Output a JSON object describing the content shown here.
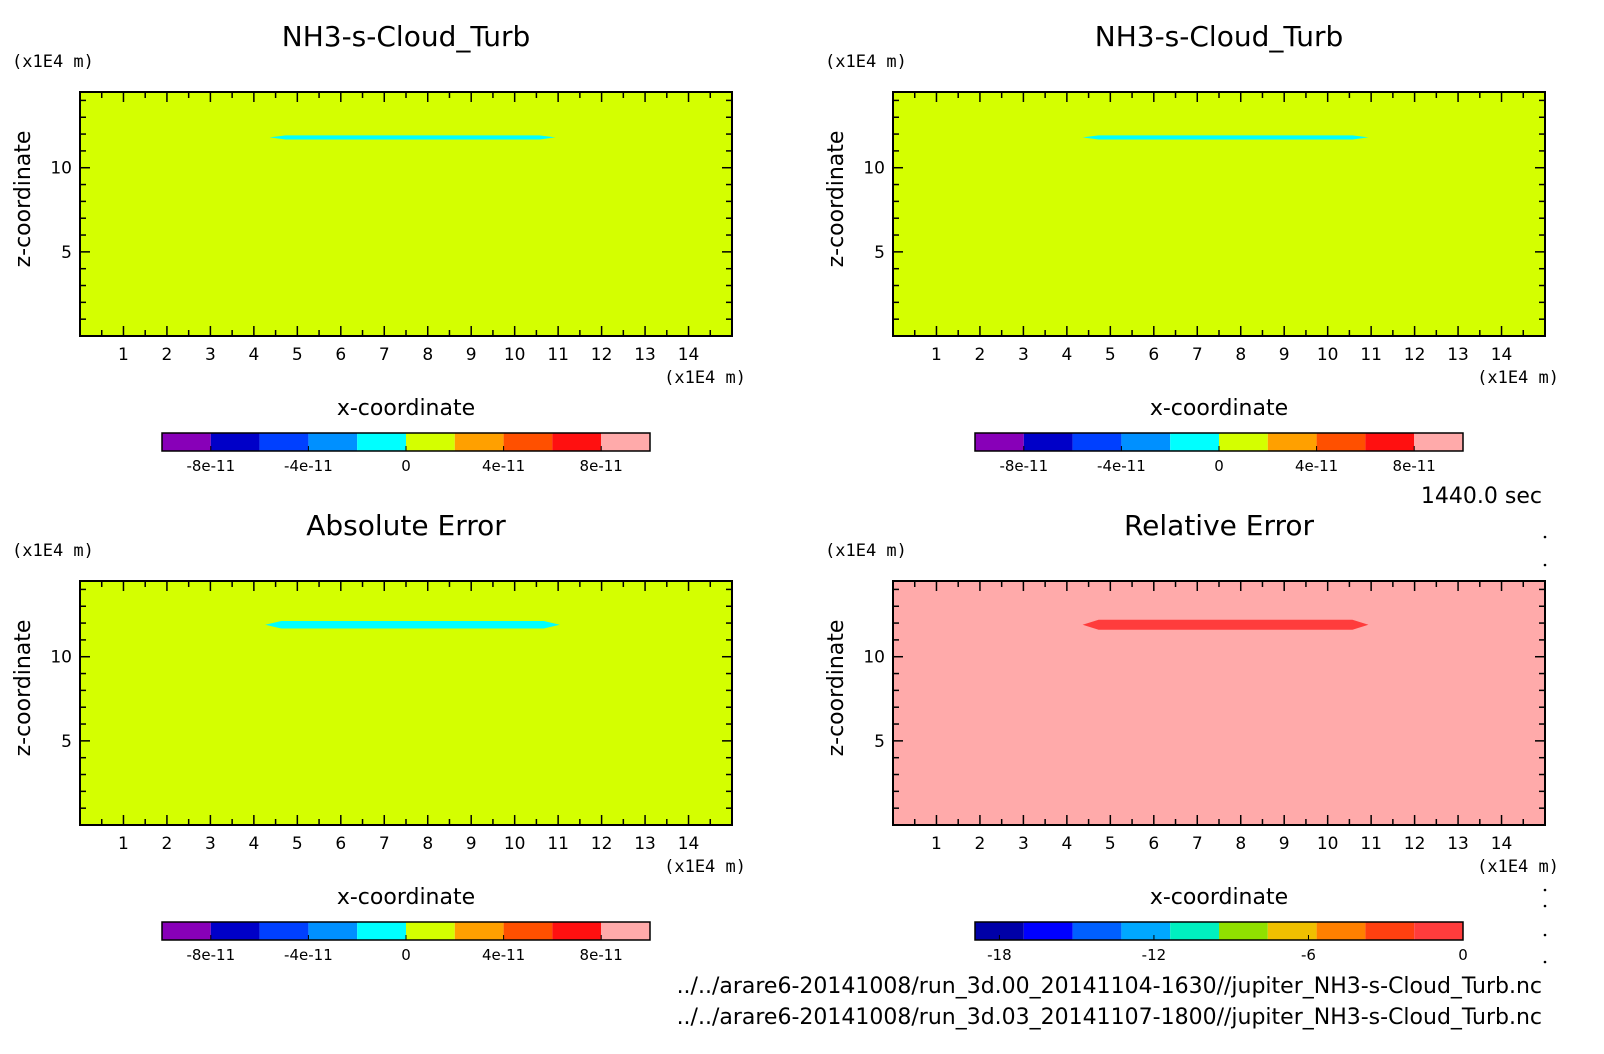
{
  "time_label": "1440.0 sec",
  "footer": {
    "line1": "../../arare6-20141008/run_3d.00_20141104-1630//jupiter_NH3-s-Cloud_Turb.nc",
    "line2": "../../arare6-20141008/run_3d.03_20141107-1800//jupiter_NH3-s-Cloud_Turb.nc"
  },
  "chart_data": [
    {
      "type": "heatmap",
      "title": "NH3-s-Cloud_Turb",
      "xlabel": "x-coordinate",
      "ylabel": "z-coordinate",
      "xunit": "(x1E4 m)",
      "yunit": "(x1E4 m)",
      "xlim": [
        0,
        15
      ],
      "ylim": [
        0,
        14.5
      ],
      "xticks": [
        "1",
        "2",
        "3",
        "4",
        "5",
        "6",
        "7",
        "8",
        "9",
        "10",
        "11",
        "12",
        "13",
        "14"
      ],
      "yticks": [
        "5",
        "10"
      ],
      "background_color": "#d4ff00",
      "band": {
        "x_start": 4.5,
        "x_end": 10.8,
        "z": 11.8,
        "thickness": 0.25,
        "color": "#00ffff"
      },
      "colorbar": {
        "colors": [
          "#8800b8",
          "#0000c8",
          "#0040ff",
          "#0090ff",
          "#00ffff",
          "#d4ff00",
          "#ffa000",
          "#ff5000",
          "#ff1010",
          "#ffaaaa"
        ],
        "tick_labels": [
          "-8e-11",
          "-4e-11",
          "0",
          "4e-11",
          "8e-11"
        ]
      }
    },
    {
      "type": "heatmap",
      "title": "NH3-s-Cloud_Turb",
      "xlabel": "x-coordinate",
      "ylabel": "z-coordinate",
      "xunit": "(x1E4 m)",
      "yunit": "(x1E4 m)",
      "xlim": [
        0,
        15
      ],
      "ylim": [
        0,
        14.5
      ],
      "xticks": [
        "1",
        "2",
        "3",
        "4",
        "5",
        "6",
        "7",
        "8",
        "9",
        "10",
        "11",
        "12",
        "13",
        "14"
      ],
      "yticks": [
        "5",
        "10"
      ],
      "background_color": "#d4ff00",
      "band": {
        "x_start": 4.5,
        "x_end": 10.8,
        "z": 11.8,
        "thickness": 0.25,
        "color": "#00ffff"
      },
      "colorbar": {
        "colors": [
          "#8800b8",
          "#0000c8",
          "#0040ff",
          "#0090ff",
          "#00ffff",
          "#d4ff00",
          "#ffa000",
          "#ff5000",
          "#ff1010",
          "#ffaaaa"
        ],
        "tick_labels": [
          "-8e-11",
          "-4e-11",
          "0",
          "4e-11",
          "8e-11"
        ]
      }
    },
    {
      "type": "heatmap",
      "title": "Absolute Error",
      "xlabel": "x-coordinate",
      "ylabel": "z-coordinate",
      "xunit": "(x1E4 m)",
      "yunit": "(x1E4 m)",
      "xlim": [
        0,
        15
      ],
      "ylim": [
        0,
        14.5
      ],
      "xticks": [
        "1",
        "2",
        "3",
        "4",
        "5",
        "6",
        "7",
        "8",
        "9",
        "10",
        "11",
        "12",
        "13",
        "14"
      ],
      "yticks": [
        "5",
        "10"
      ],
      "background_color": "#d4ff00",
      "band": {
        "x_start": 4.4,
        "x_end": 10.9,
        "z": 11.9,
        "thickness": 0.45,
        "color": "#00ffff"
      },
      "colorbar": {
        "colors": [
          "#8800b8",
          "#0000c8",
          "#0040ff",
          "#0090ff",
          "#00ffff",
          "#d4ff00",
          "#ffa000",
          "#ff5000",
          "#ff1010",
          "#ffaaaa"
        ],
        "tick_labels": [
          "-8e-11",
          "-4e-11",
          "0",
          "4e-11",
          "8e-11"
        ]
      }
    },
    {
      "type": "heatmap",
      "title": "Relative Error",
      "xlabel": "x-coordinate",
      "ylabel": "z-coordinate",
      "xunit": "(x1E4 m)",
      "yunit": "(x1E4 m)",
      "xlim": [
        0,
        15
      ],
      "ylim": [
        0,
        14.5
      ],
      "xticks": [
        "1",
        "2",
        "3",
        "4",
        "5",
        "6",
        "7",
        "8",
        "9",
        "10",
        "11",
        "12",
        "13",
        "14"
      ],
      "yticks": [
        "5",
        "10"
      ],
      "background_color": "#ffaaaa",
      "band": {
        "x_start": 4.5,
        "x_end": 10.8,
        "z": 11.9,
        "thickness": 0.6,
        "color": "#ff3c3c"
      },
      "colorbar": {
        "colors": [
          "#0000a8",
          "#0000ff",
          "#0060ff",
          "#00a8ff",
          "#00f0c0",
          "#90e000",
          "#f0c000",
          "#ff8000",
          "#ff4010",
          "#ff3c3c"
        ],
        "tick_labels": [
          "-18",
          "-12",
          "-6",
          "0"
        ]
      }
    }
  ]
}
